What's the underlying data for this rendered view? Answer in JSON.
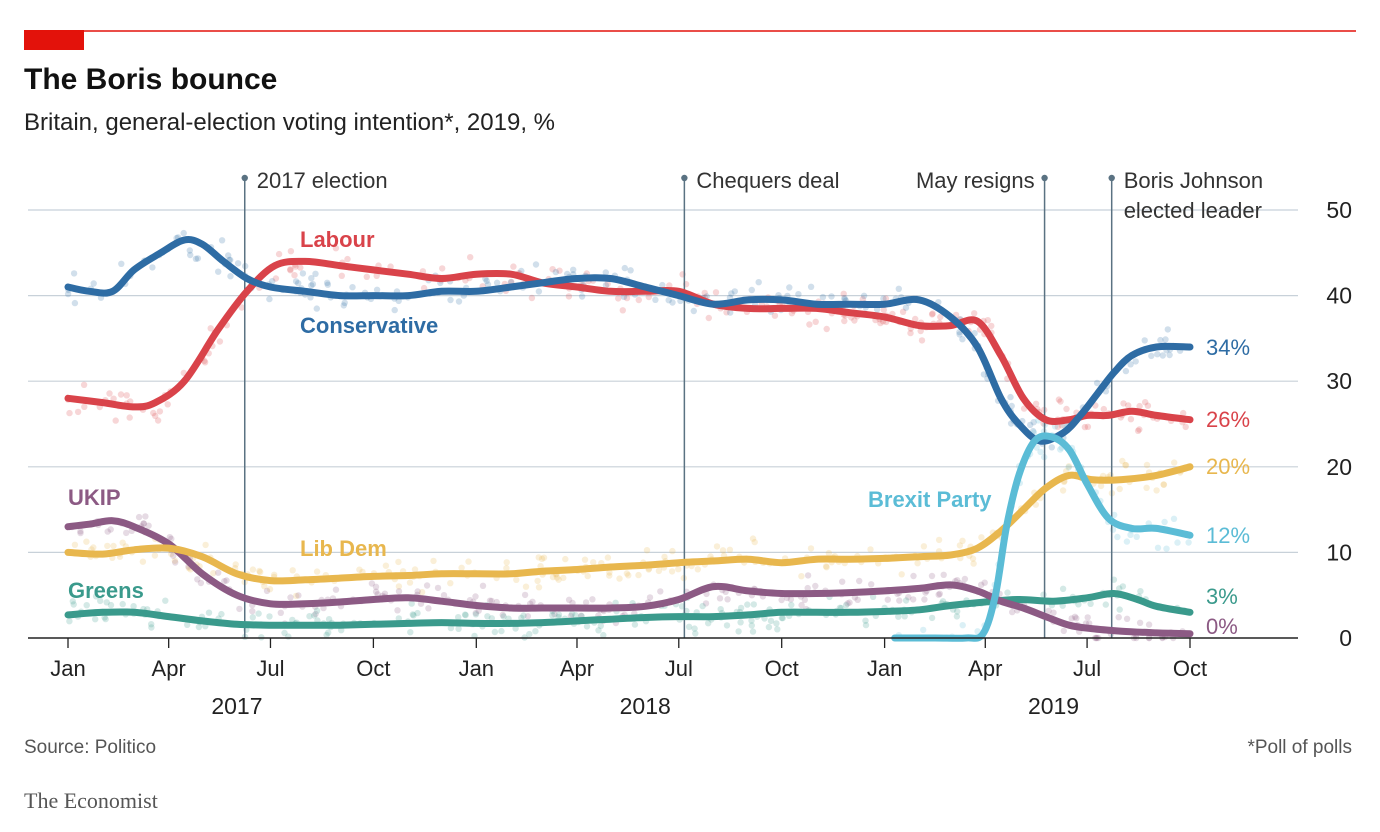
{
  "header": {
    "title": "The Boris bounce",
    "subtitle": "Britain, general-election voting intention*, 2019, %"
  },
  "footer": {
    "source": "Source: Politico",
    "note": "*Poll of polls",
    "brand": "The Economist"
  },
  "colors": {
    "accent": "#e3120b",
    "conservative": "#2e6ca4",
    "labour": "#d9434a",
    "libdem": "#e8b74e",
    "ukip": "#8c5a84",
    "greens": "#3a9a8c",
    "brexit": "#5bbcd6",
    "gridline": "#c8d1d9",
    "event_line": "#5a7282"
  },
  "chart_data": {
    "type": "line",
    "ylim": [
      0,
      50
    ],
    "y_ticks": [
      "0",
      "10",
      "20",
      "30",
      "40",
      "50"
    ],
    "x_start": "2017-01-01",
    "x_end": "2019-10-01",
    "x_ticks": [
      {
        "label": "Jan",
        "date": "2017-01-01"
      },
      {
        "label": "Apr",
        "date": "2017-04-01"
      },
      {
        "label": "Jul",
        "date": "2017-07-01"
      },
      {
        "label": "Oct",
        "date": "2017-10-01"
      },
      {
        "label": "Jan",
        "date": "2018-01-01"
      },
      {
        "label": "Apr",
        "date": "2018-04-01"
      },
      {
        "label": "Jul",
        "date": "2018-07-01"
      },
      {
        "label": "Oct",
        "date": "2018-10-01"
      },
      {
        "label": "Jan",
        "date": "2019-01-01"
      },
      {
        "label": "Apr",
        "date": "2019-04-01"
      },
      {
        "label": "Jul",
        "date": "2019-07-01"
      },
      {
        "label": "Oct",
        "date": "2019-10-01"
      }
    ],
    "years": [
      {
        "label": "2017",
        "date": "2017-06-01"
      },
      {
        "label": "2018",
        "date": "2018-06-01"
      },
      {
        "label": "2019",
        "date": "2019-06-01"
      }
    ],
    "events": [
      {
        "label": [
          "2017 election"
        ],
        "date": "2017-06-08",
        "align": "right"
      },
      {
        "label": [
          "Chequers deal"
        ],
        "date": "2018-07-06",
        "align": "right"
      },
      {
        "label": [
          "May resigns"
        ],
        "date": "2019-05-24",
        "align": "left"
      },
      {
        "label": [
          "Boris Johnson",
          "elected leader"
        ],
        "date": "2019-07-23",
        "align": "right"
      }
    ],
    "series": [
      {
        "key": "labour",
        "name": "Labour",
        "end_label": "26%",
        "points": [
          [
            "2017-01-01",
            28
          ],
          [
            "2017-02-01",
            27.5
          ],
          [
            "2017-03-01",
            27
          ],
          [
            "2017-03-20",
            27.5
          ],
          [
            "2017-04-15",
            30
          ],
          [
            "2017-05-15",
            36
          ],
          [
            "2017-06-10",
            40.5
          ],
          [
            "2017-07-05",
            43.5
          ],
          [
            "2017-08-01",
            44
          ],
          [
            "2017-09-01",
            43.5
          ],
          [
            "2017-10-01",
            43
          ],
          [
            "2017-11-01",
            42.5
          ],
          [
            "2017-12-01",
            42
          ],
          [
            "2018-01-01",
            42.5
          ],
          [
            "2018-02-01",
            42.5
          ],
          [
            "2018-03-01",
            41.5
          ],
          [
            "2018-04-01",
            41
          ],
          [
            "2018-05-01",
            40.5
          ],
          [
            "2018-06-01",
            40.5
          ],
          [
            "2018-07-01",
            40.5
          ],
          [
            "2018-08-01",
            39
          ],
          [
            "2018-09-01",
            38.5
          ],
          [
            "2018-10-01",
            38.5
          ],
          [
            "2018-11-01",
            38.5
          ],
          [
            "2018-12-01",
            38
          ],
          [
            "2019-01-01",
            37.5
          ],
          [
            "2019-02-01",
            36.5
          ],
          [
            "2019-03-01",
            36.5
          ],
          [
            "2019-03-25",
            37
          ],
          [
            "2019-04-15",
            33
          ],
          [
            "2019-05-05",
            28
          ],
          [
            "2019-05-25",
            25.5
          ],
          [
            "2019-06-15",
            25.5
          ],
          [
            "2019-07-01",
            26
          ],
          [
            "2019-07-20",
            26
          ],
          [
            "2019-08-10",
            26.5
          ],
          [
            "2019-09-01",
            26
          ],
          [
            "2019-10-01",
            25.5
          ]
        ]
      },
      {
        "key": "conservative",
        "name": "Conservative",
        "end_label": "34%",
        "points": [
          [
            "2017-01-01",
            41
          ],
          [
            "2017-01-20",
            40.5
          ],
          [
            "2017-02-10",
            40.5
          ],
          [
            "2017-03-01",
            43
          ],
          [
            "2017-03-25",
            45
          ],
          [
            "2017-04-15",
            46.5
          ],
          [
            "2017-05-01",
            46
          ],
          [
            "2017-05-20",
            44
          ],
          [
            "2017-06-10",
            42
          ],
          [
            "2017-07-01",
            41
          ],
          [
            "2017-08-01",
            40.5
          ],
          [
            "2017-09-01",
            40
          ],
          [
            "2017-10-01",
            40
          ],
          [
            "2017-11-01",
            40
          ],
          [
            "2017-12-01",
            40.5
          ],
          [
            "2018-01-01",
            40.5
          ],
          [
            "2018-02-01",
            41
          ],
          [
            "2018-03-01",
            41.5
          ],
          [
            "2018-04-01",
            42
          ],
          [
            "2018-05-01",
            42
          ],
          [
            "2018-06-01",
            41
          ],
          [
            "2018-07-01",
            40
          ],
          [
            "2018-08-01",
            39
          ],
          [
            "2018-09-01",
            39.5
          ],
          [
            "2018-10-01",
            39.5
          ],
          [
            "2018-11-01",
            39
          ],
          [
            "2018-12-01",
            39
          ],
          [
            "2019-01-01",
            39
          ],
          [
            "2019-02-01",
            39.5
          ],
          [
            "2019-03-01",
            37.5
          ],
          [
            "2019-03-25",
            34
          ],
          [
            "2019-04-15",
            28
          ],
          [
            "2019-05-01",
            25
          ],
          [
            "2019-05-20",
            23
          ],
          [
            "2019-06-10",
            24
          ],
          [
            "2019-06-25",
            26
          ],
          [
            "2019-07-10",
            28.5
          ],
          [
            "2019-07-25",
            31
          ],
          [
            "2019-08-10",
            33
          ],
          [
            "2019-09-01",
            34
          ],
          [
            "2019-10-01",
            34
          ]
        ]
      },
      {
        "key": "libdem",
        "name": "Lib Dem",
        "end_label": "20%",
        "points": [
          [
            "2017-01-01",
            10
          ],
          [
            "2017-02-01",
            9.8
          ],
          [
            "2017-03-01",
            10.3
          ],
          [
            "2017-04-01",
            10.5
          ],
          [
            "2017-05-01",
            9.5
          ],
          [
            "2017-06-01",
            7.5
          ],
          [
            "2017-07-01",
            6.7
          ],
          [
            "2017-08-01",
            6.8
          ],
          [
            "2017-09-01",
            7
          ],
          [
            "2017-10-01",
            7.2
          ],
          [
            "2017-11-01",
            7.3
          ],
          [
            "2017-12-01",
            7.5
          ],
          [
            "2018-01-01",
            7.5
          ],
          [
            "2018-02-01",
            7.5
          ],
          [
            "2018-03-01",
            7.8
          ],
          [
            "2018-04-01",
            8
          ],
          [
            "2018-05-01",
            8.3
          ],
          [
            "2018-06-01",
            8.5
          ],
          [
            "2018-07-01",
            8.8
          ],
          [
            "2018-08-01",
            9
          ],
          [
            "2018-09-01",
            9.2
          ],
          [
            "2018-10-01",
            8.8
          ],
          [
            "2018-11-01",
            9.2
          ],
          [
            "2018-12-01",
            9.2
          ],
          [
            "2019-01-01",
            9.3
          ],
          [
            "2019-02-01",
            9.5
          ],
          [
            "2019-03-01",
            9.7
          ],
          [
            "2019-03-25",
            10.5
          ],
          [
            "2019-04-15",
            12.5
          ],
          [
            "2019-05-05",
            15
          ],
          [
            "2019-05-25",
            17.5
          ],
          [
            "2019-06-15",
            19
          ],
          [
            "2019-07-05",
            18.5
          ],
          [
            "2019-08-01",
            18.5
          ],
          [
            "2019-09-01",
            19
          ],
          [
            "2019-10-01",
            20
          ]
        ]
      },
      {
        "key": "ukip",
        "name": "UKIP",
        "end_label": "0%",
        "points": [
          [
            "2017-01-01",
            13
          ],
          [
            "2017-01-20",
            13.3
          ],
          [
            "2017-02-10",
            13.7
          ],
          [
            "2017-03-01",
            13
          ],
          [
            "2017-04-01",
            11
          ],
          [
            "2017-05-01",
            7.5
          ],
          [
            "2017-06-01",
            5
          ],
          [
            "2017-07-01",
            4
          ],
          [
            "2017-08-01",
            4
          ],
          [
            "2017-09-01",
            4.2
          ],
          [
            "2017-10-01",
            4.5
          ],
          [
            "2017-11-01",
            4.7
          ],
          [
            "2017-12-01",
            4.3
          ],
          [
            "2018-01-01",
            3.8
          ],
          [
            "2018-02-01",
            3.5
          ],
          [
            "2018-03-01",
            3.5
          ],
          [
            "2018-04-01",
            3.5
          ],
          [
            "2018-05-01",
            3.5
          ],
          [
            "2018-06-01",
            3.7
          ],
          [
            "2018-07-01",
            4.5
          ],
          [
            "2018-08-01",
            6
          ],
          [
            "2018-09-01",
            5.5
          ],
          [
            "2018-10-01",
            5.2
          ],
          [
            "2018-11-01",
            5.2
          ],
          [
            "2018-12-01",
            5.3
          ],
          [
            "2019-01-01",
            5.5
          ],
          [
            "2019-02-01",
            5.8
          ],
          [
            "2019-03-01",
            6.2
          ],
          [
            "2019-03-25",
            5.5
          ],
          [
            "2019-04-15",
            4.3
          ],
          [
            "2019-05-05",
            3.5
          ],
          [
            "2019-05-25",
            2.5
          ],
          [
            "2019-06-15",
            1.5
          ],
          [
            "2019-07-05",
            1.1
          ],
          [
            "2019-08-01",
            0.8
          ],
          [
            "2019-09-01",
            0.6
          ],
          [
            "2019-10-01",
            0.5
          ]
        ]
      },
      {
        "key": "greens",
        "name": "Greens",
        "end_label": "3%",
        "points": [
          [
            "2017-01-01",
            2.7
          ],
          [
            "2017-02-01",
            3
          ],
          [
            "2017-03-01",
            3
          ],
          [
            "2017-04-01",
            2.5
          ],
          [
            "2017-05-01",
            2
          ],
          [
            "2017-06-01",
            1.6
          ],
          [
            "2017-07-01",
            1.5
          ],
          [
            "2017-08-01",
            1.5
          ],
          [
            "2017-09-01",
            1.5
          ],
          [
            "2017-10-01",
            1.6
          ],
          [
            "2017-11-01",
            1.7
          ],
          [
            "2017-12-01",
            1.8
          ],
          [
            "2018-01-01",
            1.7
          ],
          [
            "2018-02-01",
            1.7
          ],
          [
            "2018-03-01",
            1.8
          ],
          [
            "2018-04-01",
            2
          ],
          [
            "2018-05-01",
            2.2
          ],
          [
            "2018-06-01",
            2.4
          ],
          [
            "2018-07-01",
            2.5
          ],
          [
            "2018-08-01",
            2.5
          ],
          [
            "2018-09-01",
            2.7
          ],
          [
            "2018-10-01",
            3
          ],
          [
            "2018-11-01",
            3
          ],
          [
            "2018-12-01",
            3
          ],
          [
            "2019-01-01",
            3.1
          ],
          [
            "2019-02-01",
            3.3
          ],
          [
            "2019-03-01",
            3.8
          ],
          [
            "2019-04-01",
            4.2
          ],
          [
            "2019-05-01",
            4.5
          ],
          [
            "2019-06-01",
            4.3
          ],
          [
            "2019-07-01",
            4.7
          ],
          [
            "2019-07-25",
            5.2
          ],
          [
            "2019-08-15",
            4.5
          ],
          [
            "2019-09-01",
            3.7
          ],
          [
            "2019-10-01",
            3
          ]
        ]
      },
      {
        "key": "brexit",
        "name": "Brexit Party",
        "end_label": "12%",
        "points": [
          [
            "2019-01-10",
            0
          ],
          [
            "2019-02-15",
            0
          ],
          [
            "2019-03-15",
            0
          ],
          [
            "2019-03-30",
            0.5
          ],
          [
            "2019-04-10",
            5
          ],
          [
            "2019-04-20",
            13
          ],
          [
            "2019-05-01",
            19
          ],
          [
            "2019-05-15",
            23
          ],
          [
            "2019-05-30",
            23.5
          ],
          [
            "2019-06-15",
            22
          ],
          [
            "2019-07-01",
            18
          ],
          [
            "2019-07-20",
            14
          ],
          [
            "2019-08-10",
            12.8
          ],
          [
            "2019-09-01",
            12.8
          ],
          [
            "2019-10-01",
            12
          ]
        ]
      }
    ]
  }
}
